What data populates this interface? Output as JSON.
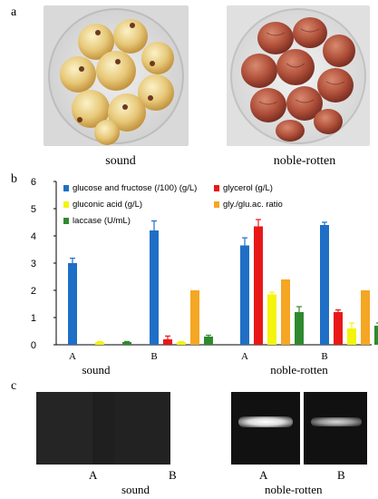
{
  "panels": {
    "a": "a",
    "b": "b",
    "c": "c"
  },
  "photos": {
    "left_caption": "sound",
    "right_caption": "noble-rotten"
  },
  "chart_data": {
    "type": "bar",
    "categories": [
      "A",
      "B",
      "A",
      "B"
    ],
    "groups": [
      {
        "label": "sound",
        "categories": [
          "A",
          "B"
        ]
      },
      {
        "label": "noble-rotten",
        "categories": [
          "A",
          "B"
        ]
      }
    ],
    "series": [
      {
        "name": "glucose and fructose (/100) (g/L)",
        "color": "#1f6fc6",
        "values": [
          3.0,
          4.2,
          3.65,
          4.4
        ],
        "errors": [
          0.18,
          0.35,
          0.28,
          0.1
        ]
      },
      {
        "name": "glycerol (g/L)",
        "color": "#e81818",
        "values": [
          0.0,
          0.2,
          4.35,
          1.2
        ],
        "errors": [
          0.0,
          0.12,
          0.25,
          0.08
        ]
      },
      {
        "name": "gluconic acid (g/L)",
        "color": "#f4f40c",
        "values": [
          0.1,
          0.1,
          1.85,
          0.6
        ],
        "errors": [
          0.02,
          0.02,
          0.08,
          0.2
        ]
      },
      {
        "name": "gly./glu.ac. ratio",
        "color": "#f5a623",
        "values": [
          0.0,
          2.0,
          2.4,
          2.0
        ],
        "errors": [
          0,
          0,
          0,
          0
        ]
      },
      {
        "name": "laccase (U/mL)",
        "color": "#2f8a2f",
        "values": [
          0.1,
          0.3,
          1.2,
          0.7
        ],
        "errors": [
          0.02,
          0.05,
          0.2,
          0.1
        ]
      }
    ],
    "ylim": [
      0,
      6
    ],
    "yticks": [
      0,
      1,
      2,
      3,
      4,
      5,
      6
    ],
    "legend_position": "top"
  },
  "gels": {
    "group_labels": [
      "sound",
      "noble-rotten"
    ],
    "lanes": [
      {
        "label": "A",
        "band": 0
      },
      {
        "label": "B",
        "band": 0
      },
      {
        "label": "A",
        "band": 1
      },
      {
        "label": "B",
        "band": 0.55
      }
    ]
  }
}
